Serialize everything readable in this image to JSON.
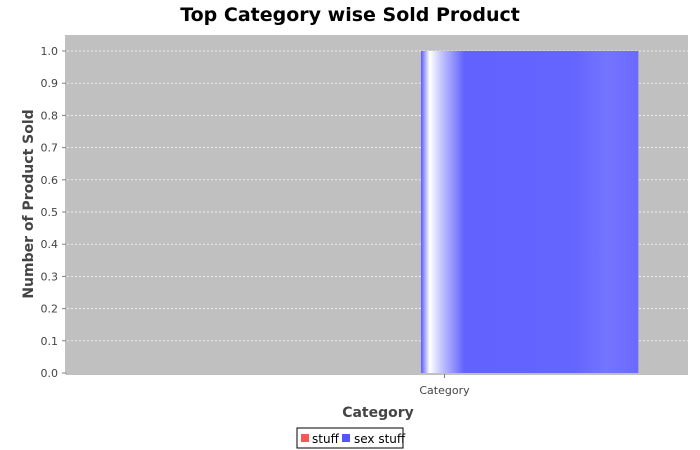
{
  "chart_data": {
    "type": "bar",
    "title": "Top Category wise Sold Product",
    "xlabel": "Category",
    "ylabel": "Number of Product Sold",
    "categories": [
      "Category"
    ],
    "series": [
      {
        "name": "stuff",
        "values": [
          0
        ],
        "color": "#ff5555"
      },
      {
        "name": "sex stuff",
        "values": [
          1.0
        ],
        "color": "#5555ff"
      }
    ],
    "ylim": [
      0,
      1.0
    ],
    "yticks": [
      "0.0",
      "0.1",
      "0.2",
      "0.3",
      "0.4",
      "0.5",
      "0.6",
      "0.7",
      "0.8",
      "0.9",
      "1.0"
    ],
    "grid": true,
    "legend_position": "bottom",
    "plot_background": "#c0c0c0"
  }
}
